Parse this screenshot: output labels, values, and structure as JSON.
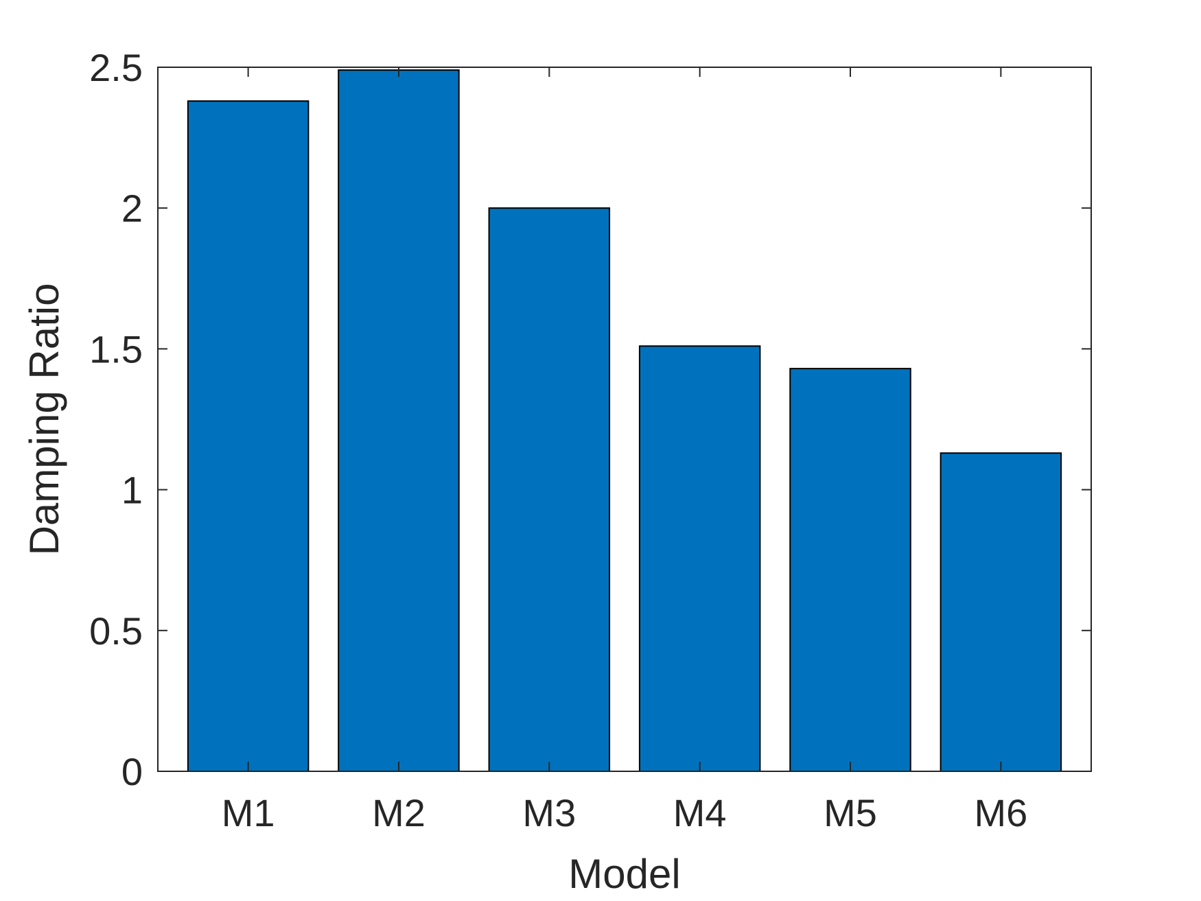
{
  "chart_data": {
    "type": "bar",
    "categories": [
      "M1",
      "M2",
      "M3",
      "M4",
      "M5",
      "M6"
    ],
    "values": [
      2.38,
      2.49,
      2.0,
      1.51,
      1.43,
      1.13
    ],
    "xlabel": "Model",
    "ylabel": "Damping Ratio",
    "ylim": [
      0,
      2.5
    ],
    "yticks": [
      "0",
      "0.5",
      "1",
      "1.5",
      "2",
      "2.5"
    ],
    "grid": false,
    "legend": "none",
    "bar_color": "#0072BD",
    "bar_edge_color": "#000000",
    "axis_color": "#262626"
  }
}
